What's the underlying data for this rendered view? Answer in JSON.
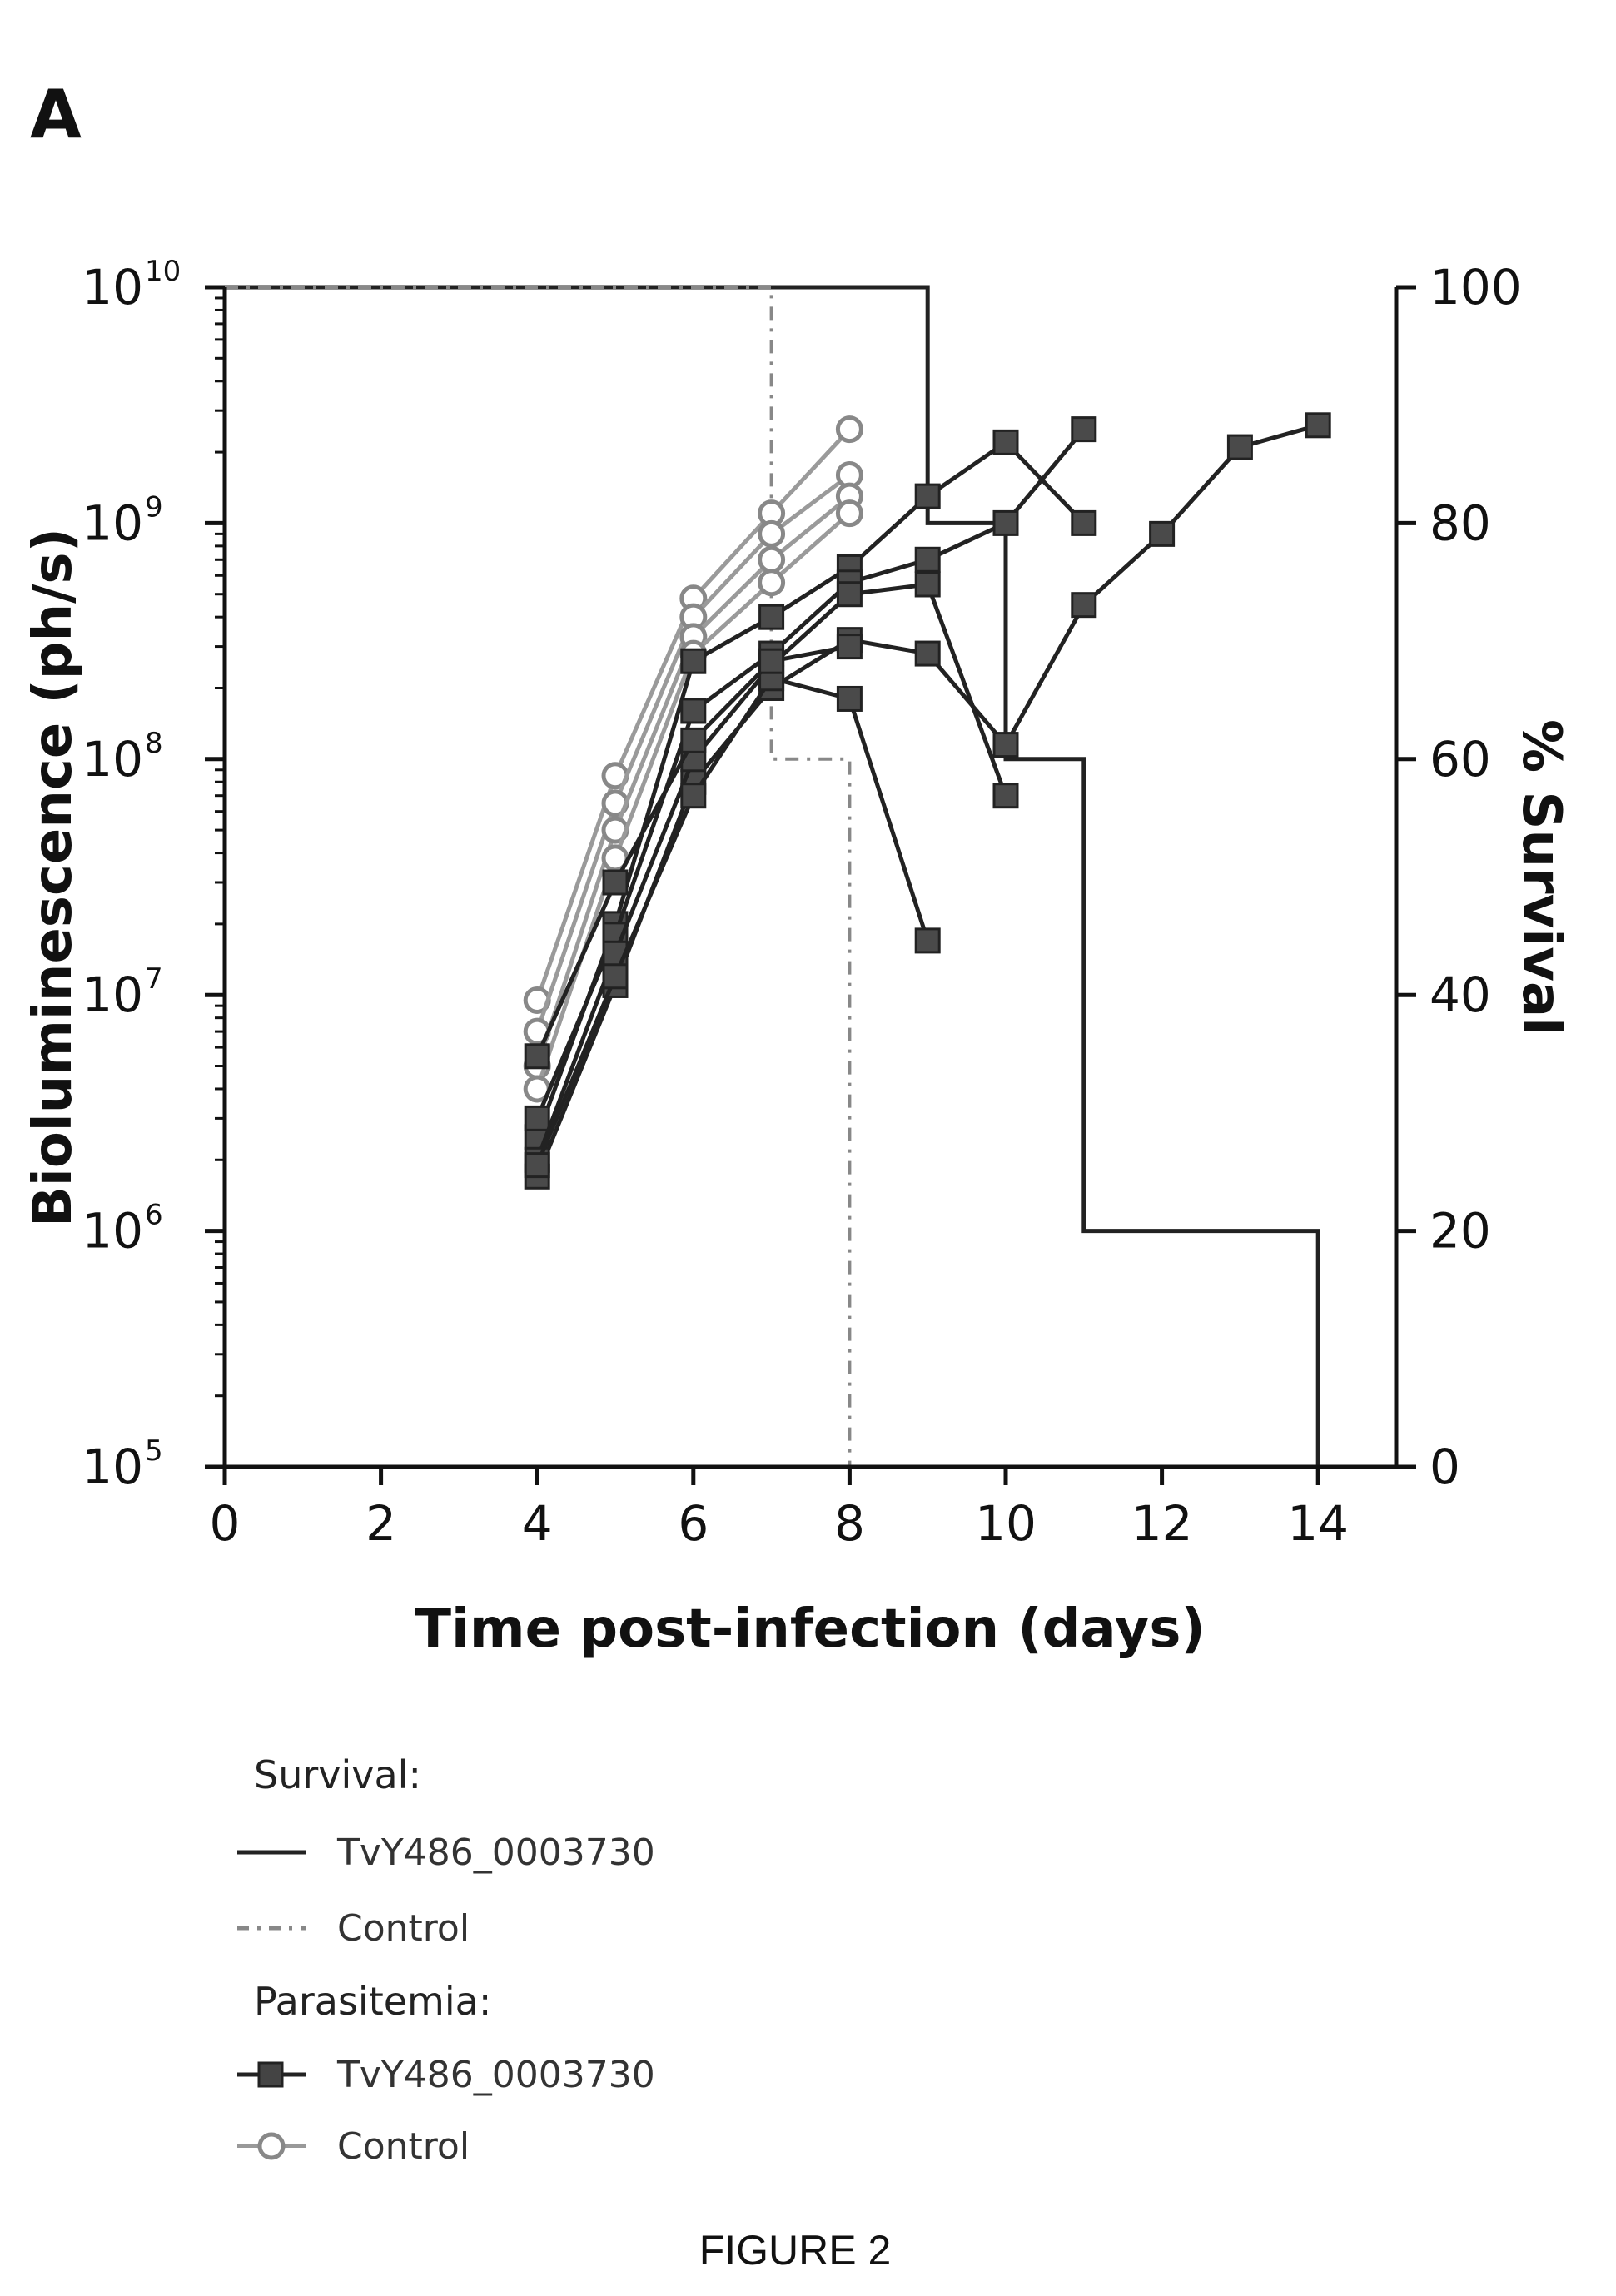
{
  "figure": {
    "panel_label": "A",
    "caption": "FIGURE 2"
  },
  "chart_data": {
    "type": "line",
    "xlabel": "Time post-infection (days)",
    "ylabel": "Bioluminescence (ph/s)",
    "y2label": "% Survival",
    "xlim": [
      0,
      15
    ],
    "x_ticks": [
      "0",
      "2",
      "4",
      "6",
      "8",
      "10",
      "12",
      "14"
    ],
    "x_tick_values": [
      0,
      2,
      4,
      6,
      8,
      10,
      12,
      14
    ],
    "ylim": [
      100000,
      10000000000
    ],
    "yscale": "log",
    "y_ticks": [
      {
        "value": 100000,
        "base": "10",
        "exp": "5"
      },
      {
        "value": 1000000,
        "base": "10",
        "exp": "6"
      },
      {
        "value": 10000000,
        "base": "10",
        "exp": "7"
      },
      {
        "value": 100000000,
        "base": "10",
        "exp": "8"
      },
      {
        "value": 1000000000,
        "base": "10",
        "exp": "9"
      },
      {
        "value": 10000000000,
        "base": "10",
        "exp": "10"
      }
    ],
    "y2lim": [
      0,
      100
    ],
    "y2_ticks": [
      "0",
      "20",
      "40",
      "60",
      "80",
      "100"
    ],
    "y2_tick_values": [
      0,
      20,
      40,
      60,
      80,
      100
    ],
    "legend": {
      "survival_header": "Survival:",
      "parasitemia_header": "Parasitemia:",
      "entries": [
        {
          "group": "survival",
          "label": "TvY486_0003730",
          "style": "solid-line"
        },
        {
          "group": "survival",
          "label": "Control",
          "style": "dash-dot-line"
        },
        {
          "group": "parasitemia",
          "label": "TvY486_0003730",
          "style": "filled-square"
        },
        {
          "group": "parasitemia",
          "label": "Control",
          "style": "open-circle"
        }
      ]
    },
    "survival": [
      {
        "name": "TvY486_0003730",
        "x": [
          0,
          9,
          9,
          10,
          10,
          11,
          11,
          14,
          14
        ],
        "y": [
          100,
          100,
          80,
          80,
          60,
          60,
          20,
          20,
          0
        ],
        "color": "#222222"
      },
      {
        "name": "Control",
        "x": [
          0,
          7,
          7,
          8,
          8
        ],
        "y": [
          100,
          100,
          60,
          60,
          0
        ],
        "color": "#888888"
      }
    ],
    "parasitemia_TvY486_0003730": [
      {
        "x": [
          4,
          5,
          6,
          7,
          8,
          9,
          10,
          11
        ],
        "y": [
          2500000,
          20000000,
          260000000,
          400000000,
          650000000,
          1300000000,
          2200000000,
          1000000000
        ]
      },
      {
        "x": [
          4,
          5,
          6,
          7,
          8,
          9,
          10,
          11
        ],
        "y": [
          3000000,
          18000000,
          160000000,
          280000000,
          560000000,
          700000000,
          1000000000,
          2500000000
        ]
      },
      {
        "x": [
          4,
          5,
          6,
          7,
          8,
          9,
          10,
          11,
          12,
          13,
          14
        ],
        "y": [
          1700000,
          11000000,
          80000000,
          200000000,
          320000000,
          280000000,
          115000000,
          450000000,
          900000000,
          2100000000,
          2600000000
        ]
      },
      {
        "x": [
          4,
          5,
          6,
          7,
          8,
          9,
          10
        ],
        "y": [
          2000000,
          15000000,
          100000000,
          250000000,
          500000000,
          550000000,
          70000000
        ]
      },
      {
        "x": [
          4,
          5,
          6,
          7,
          8,
          9
        ],
        "y": [
          1900000,
          12000000,
          70000000,
          220000000,
          180000000,
          17000000
        ]
      },
      {
        "x": [
          4,
          5,
          6,
          7,
          8
        ],
        "y": [
          5500000,
          30000000,
          120000000,
          260000000,
          300000000
        ]
      }
    ],
    "parasitemia_Control": [
      {
        "x": [
          4,
          5,
          6,
          7,
          8
        ],
        "y": [
          9500000,
          85000000,
          480000000,
          1100000000,
          2500000000
        ]
      },
      {
        "x": [
          4,
          5,
          6,
          7,
          8
        ],
        "y": [
          7000000,
          65000000,
          400000000,
          900000000,
          1600000000
        ]
      },
      {
        "x": [
          4,
          5,
          6,
          7,
          8
        ],
        "y": [
          5000000,
          50000000,
          330000000,
          700000000,
          1300000000
        ]
      },
      {
        "x": [
          4,
          5,
          6,
          7,
          8
        ],
        "y": [
          4000000,
          38000000,
          280000000,
          560000000,
          1100000000
        ]
      }
    ]
  }
}
